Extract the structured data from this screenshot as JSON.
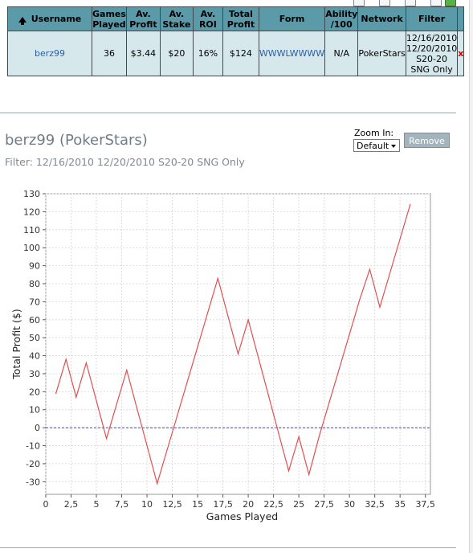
{
  "table": {
    "headers": [
      "Username",
      "Games Played",
      "Av. Profit",
      "Av. Stake",
      "Av. ROI",
      "Total Profit",
      "Form",
      "Ability /100",
      "Network",
      "Filter"
    ],
    "header_lines": [
      [
        "Username"
      ],
      [
        "Games",
        "Played"
      ],
      [
        "Av.",
        "Profit"
      ],
      [
        "Av.",
        "Stake"
      ],
      [
        "Av.",
        "ROI"
      ],
      [
        "Total",
        "Profit"
      ],
      [
        "Form"
      ],
      [
        "Ability",
        "/100"
      ],
      [
        "Network"
      ],
      [
        "Filter"
      ]
    ],
    "row": {
      "username": "berz99",
      "games_played": "36",
      "av_profit": "$3.44",
      "av_stake": "$20",
      "av_roi": "16%",
      "total_profit": "$124",
      "form": "WWWLWWWW",
      "ability": "N/A",
      "network": "PokerStars",
      "filter_lines": [
        "12/16/2010",
        "12/20/2010",
        "S20-20",
        "SNG Only"
      ],
      "remove_mark": "x"
    }
  },
  "player": {
    "title": "berz99 (PokerStars)",
    "filter_text": "Filter: 12/16/2010 12/20/2010 S20-20 SNG Only"
  },
  "zoom": {
    "label": "Zoom In:",
    "selected": "Default"
  },
  "remove_button": "Remove",
  "colors": {
    "header_bg": "#5a9aa9",
    "row_bg": "#d6e8ec",
    "line": "#e05050",
    "zero_line": "#4a4aa8"
  },
  "chart_data": {
    "type": "line",
    "xlabel": "Games Played",
    "ylabel": "Total Profit ($)",
    "xlim": [
      0,
      38
    ],
    "ylim": [
      -37,
      130
    ],
    "xticks": [
      0,
      2.5,
      5,
      7.5,
      10,
      12.5,
      15,
      17.5,
      20,
      22.5,
      25,
      27.5,
      30,
      32.5,
      35,
      37.5
    ],
    "xtick_labels": [
      "0",
      "2,5",
      "5",
      "7,5",
      "10",
      "12,5",
      "15",
      "17,5",
      "20",
      "22,5",
      "25",
      "27,5",
      "30",
      "32,5",
      "35",
      "37,5"
    ],
    "yticks": [
      -30,
      -20,
      -10,
      0,
      10,
      20,
      30,
      40,
      50,
      60,
      70,
      80,
      90,
      100,
      110,
      120,
      130
    ],
    "grid": true,
    "zero_line": 0,
    "x": [
      1,
      2,
      3,
      4,
      5,
      6,
      7,
      8,
      9,
      10,
      11,
      12,
      13,
      14,
      15,
      16,
      17,
      18,
      19,
      20,
      21,
      22,
      23,
      24,
      25,
      26,
      27,
      28,
      29,
      30,
      31,
      32,
      33,
      34,
      35,
      36
    ],
    "values": [
      19,
      38,
      17,
      36,
      15,
      -6,
      13,
      32,
      11,
      -10,
      -31,
      -12,
      7,
      26,
      45,
      64,
      83,
      62,
      41,
      60,
      39,
      18,
      -3,
      -24,
      -5,
      -26,
      -5,
      14,
      33,
      52,
      71,
      88,
      67,
      86,
      105,
      124
    ]
  }
}
